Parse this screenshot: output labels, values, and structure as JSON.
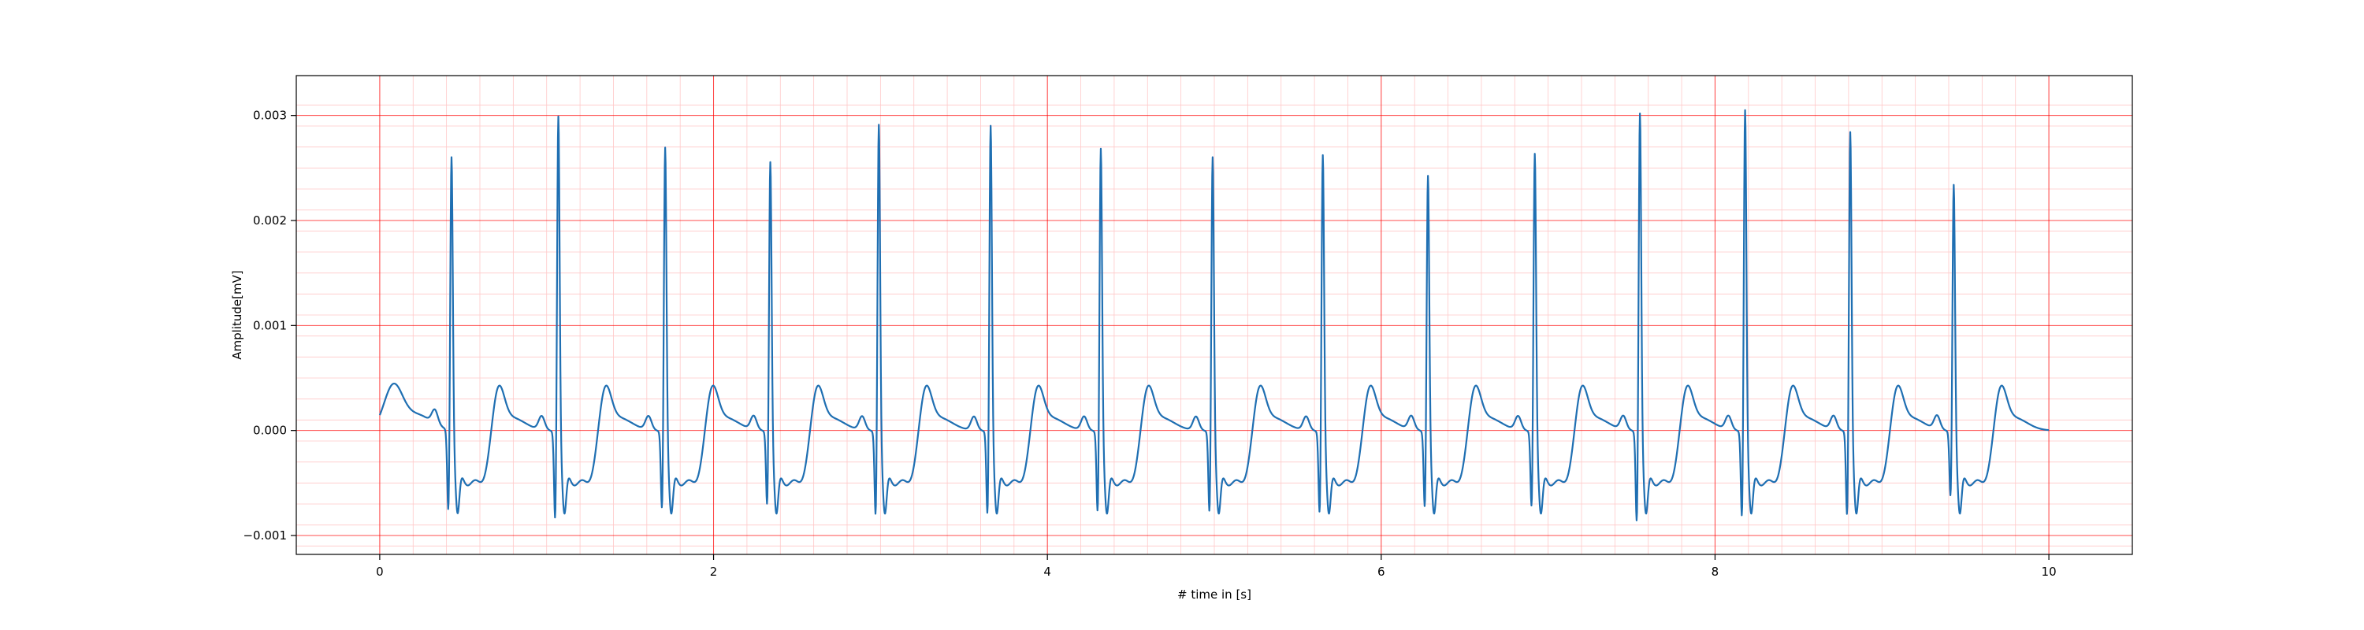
{
  "chart_data": {
    "type": "line",
    "title": "",
    "xlabel": "# time in [s]",
    "ylabel": "Amplitude[mV]",
    "xlim": [
      -0.5,
      10.5
    ],
    "ylim": [
      -0.00118,
      0.00338
    ],
    "x_ticks": [
      0,
      2,
      4,
      6,
      8,
      10
    ],
    "x_tick_labels": [
      "0",
      "2",
      "4",
      "6",
      "8",
      "10"
    ],
    "y_ticks": [
      -0.001,
      0.0,
      0.001,
      0.002,
      0.003
    ],
    "y_tick_labels": [
      "−0.001",
      "0.000",
      "0.001",
      "0.002",
      "0.003"
    ],
    "grid": true,
    "grid_color": "#ff0000",
    "minor_grid_color": "#ffc8c8",
    "line_color": "#1f6fb2",
    "legend": "none",
    "duration_s": 10.0,
    "series": [
      {
        "beats": [
          {
            "t": 0.43,
            "r": 0.0027,
            "q": -0.00085
          },
          {
            "t": 1.07,
            "r": 0.0031,
            "q": -0.00093
          },
          {
            "t": 1.71,
            "r": 0.0028,
            "q": -0.00082
          },
          {
            "t": 2.34,
            "r": 0.00266,
            "q": -0.00078
          },
          {
            "t": 2.99,
            "r": 0.00302,
            "q": -0.00089
          },
          {
            "t": 3.66,
            "r": 0.00301,
            "q": -0.00088
          },
          {
            "t": 4.32,
            "r": 0.00279,
            "q": -0.00085
          },
          {
            "t": 4.99,
            "r": 0.00271,
            "q": -0.00085
          },
          {
            "t": 5.65,
            "r": 0.00273,
            "q": -0.00086
          },
          {
            "t": 6.28,
            "r": 0.00253,
            "q": -0.0008
          },
          {
            "t": 6.92,
            "r": 0.00274,
            "q": -0.0008
          },
          {
            "t": 7.55,
            "r": 0.00313,
            "q": -0.00096
          },
          {
            "t": 8.18,
            "r": 0.00316,
            "q": -0.00091
          },
          {
            "t": 8.81,
            "r": 0.00295,
            "q": -0.00089
          },
          {
            "t": 9.43,
            "r": 0.00244,
            "q": -0.00069
          }
        ]
      }
    ]
  }
}
